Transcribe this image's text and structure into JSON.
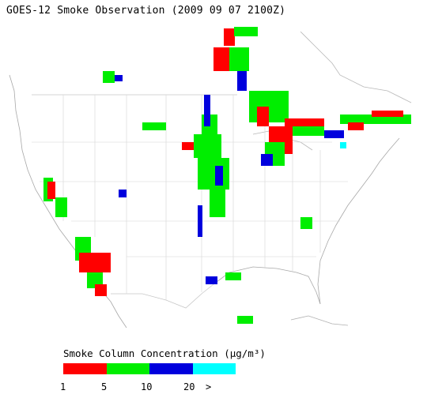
{
  "title": "GOES-12 Smoke Observation (2009 09 07  2100Z)",
  "legend": {
    "title": "Smoke Column Concentration (μg/m³)",
    "classes": [
      {
        "name": "1-5",
        "color": "#ff0000"
      },
      {
        "name": "5-10",
        "color": "#00ee00"
      },
      {
        "name": "10-20",
        "color": "#0000dd"
      },
      {
        "name": "20+",
        "color": "#00ffff"
      }
    ],
    "ticks": [
      "1",
      "5",
      "10",
      "20",
      ">"
    ]
  },
  "colors": {
    "boundaries": "#c8c8c8",
    "coast": "#a0a0a0"
  }
}
